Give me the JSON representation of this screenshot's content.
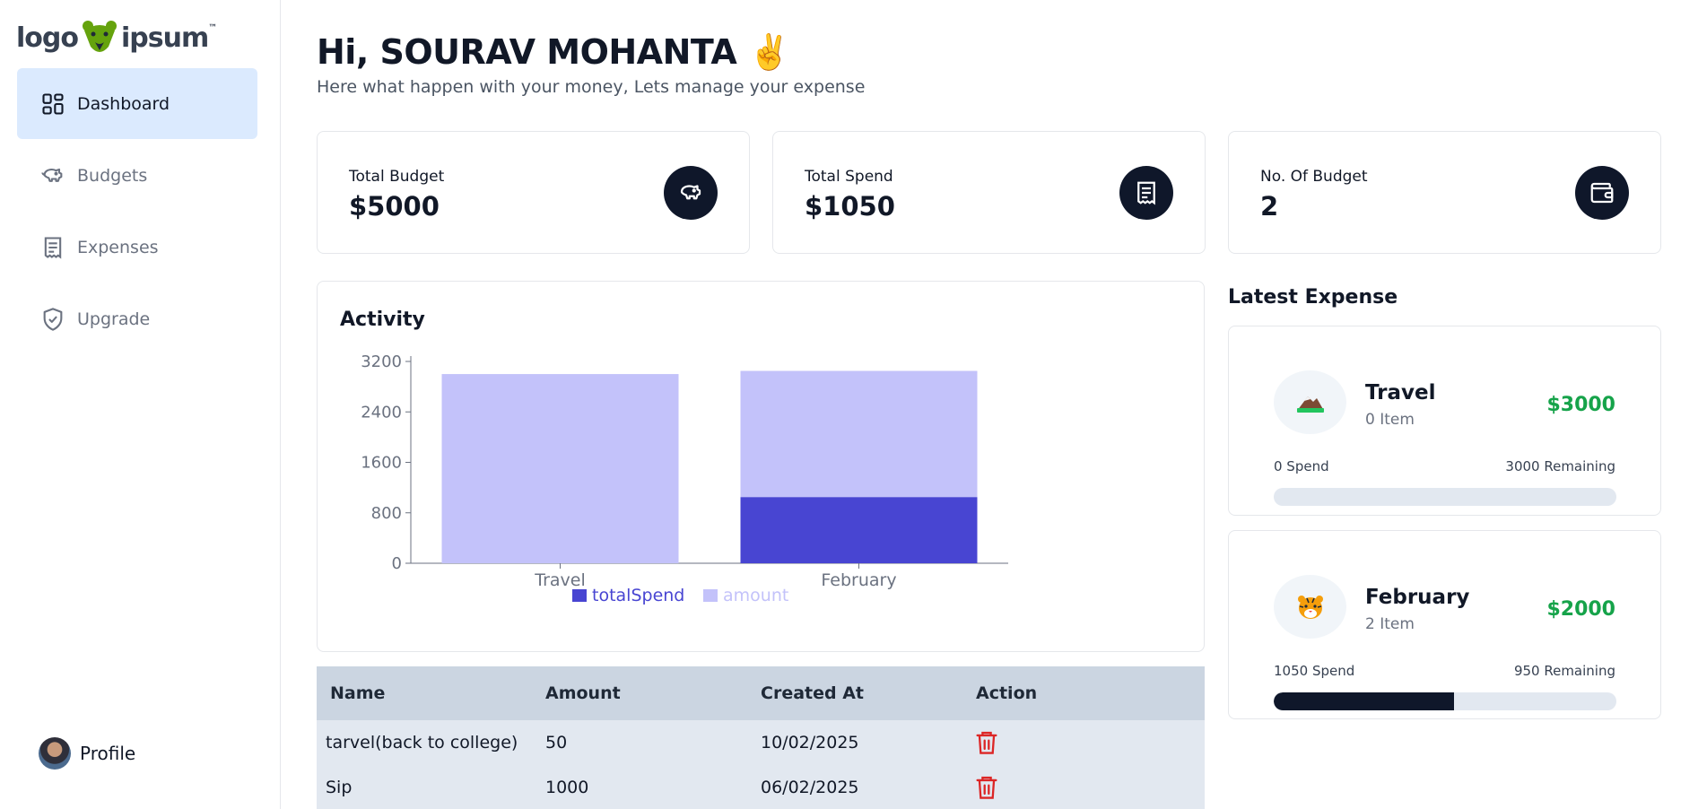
{
  "logo": {
    "left_text": "logo",
    "right_text": "ipsum",
    "tm": "™"
  },
  "sidebar": {
    "items": [
      {
        "label": "Dashboard",
        "icon": "dashboard-icon",
        "active": true
      },
      {
        "label": "Budgets",
        "icon": "piggy-bank-icon",
        "active": false
      },
      {
        "label": "Expenses",
        "icon": "receipt-icon",
        "active": false
      },
      {
        "label": "Upgrade",
        "icon": "shield-check-icon",
        "active": false
      }
    ],
    "profile_label": "Profile"
  },
  "header": {
    "greeting": "Hi, SOURAV MOHANTA ✌️",
    "subtitle": "Here what happen with your money, Lets manage your expense"
  },
  "stats": [
    {
      "label": "Total Budget",
      "value": "$5000",
      "icon": "piggy-bank-icon"
    },
    {
      "label": "Total Spend",
      "value": "$1050",
      "icon": "receipt-icon"
    },
    {
      "label": "No. Of Budget",
      "value": "2",
      "icon": "wallet-icon"
    }
  ],
  "activity": {
    "title": "Activity"
  },
  "chart_data": {
    "type": "bar",
    "stacked": true,
    "categories": [
      "Travel",
      "February"
    ],
    "series": [
      {
        "name": "totalSpend",
        "values": [
          0,
          1050
        ],
        "color": "#4845d2"
      },
      {
        "name": "amount",
        "values": [
          3000,
          2000
        ],
        "color": "#c3c2fa"
      }
    ],
    "yticks": [
      0,
      800,
      1600,
      2400,
      3200
    ],
    "ylim": [
      0,
      3200
    ],
    "legend": "bottom"
  },
  "table": {
    "headers": [
      "Name",
      "Amount",
      "Created At",
      "Action"
    ],
    "rows": [
      {
        "name": "tarvel(back to college)",
        "amount": "50",
        "created": "10/02/2025"
      },
      {
        "name": "Sip",
        "amount": "1000",
        "created": "06/02/2025"
      }
    ]
  },
  "latest": {
    "title": "Latest Expense",
    "items": [
      {
        "emoji": "🏔️",
        "name": "Travel",
        "items": "0 Item",
        "amount": "$3000",
        "spend": "0 Spend",
        "remaining": "3000 Remaining",
        "progress": 0
      },
      {
        "emoji": "🐯",
        "name": "February",
        "items": "2 Item",
        "amount": "$2000",
        "spend": "1050 Spend",
        "remaining": "950 Remaining",
        "progress": 0.525
      }
    ]
  },
  "colors": {
    "accent": "#dbeafe",
    "dark": "#0f172a",
    "green": "#16a34a",
    "delete": "#dc2626"
  }
}
